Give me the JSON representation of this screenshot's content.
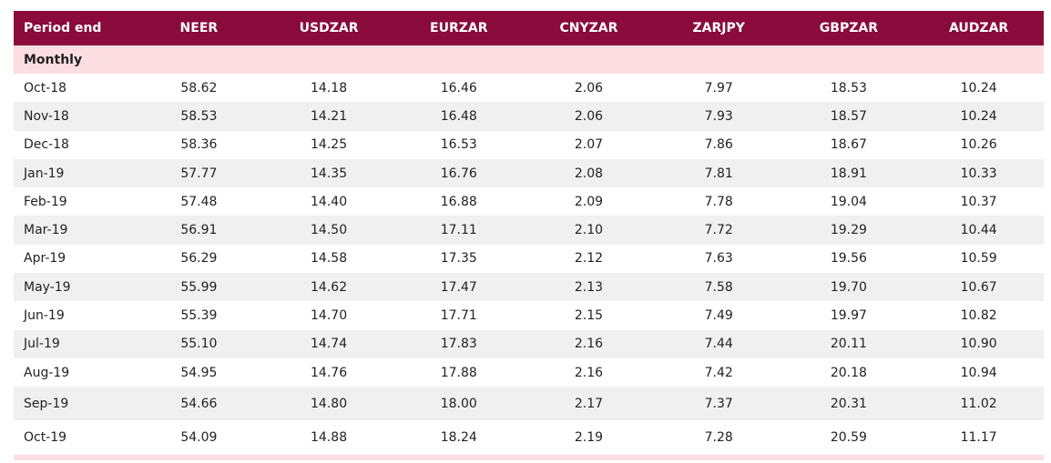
{
  "table": {
    "headers": [
      "Period end",
      "NEER",
      "USDZAR",
      "EURZAR",
      "CNYZAR",
      "ZARJPY",
      "GBPZAR",
      "AUDZAR"
    ],
    "section_label": "Monthly",
    "rows": [
      [
        "Oct-18",
        "58.62",
        "14.18",
        "16.46",
        "2.06",
        "7.97",
        "18.53",
        "10.24"
      ],
      [
        "Nov-18",
        "58.53",
        "14.21",
        "16.48",
        "2.06",
        "7.93",
        "18.57",
        "10.24"
      ],
      [
        "Dec-18",
        "58.36",
        "14.25",
        "16.53",
        "2.07",
        "7.86",
        "18.67",
        "10.26"
      ],
      [
        "Jan-19",
        "57.77",
        "14.35",
        "16.76",
        "2.08",
        "7.81",
        "18.91",
        "10.33"
      ],
      [
        "Feb-19",
        "57.48",
        "14.40",
        "16.88",
        "2.09",
        "7.78",
        "19.04",
        "10.37"
      ],
      [
        "Mar-19",
        "56.91",
        "14.50",
        "17.11",
        "2.10",
        "7.72",
        "19.29",
        "10.44"
      ],
      [
        "Apr-19",
        "56.29",
        "14.58",
        "17.35",
        "2.12",
        "7.63",
        "19.56",
        "10.59"
      ],
      [
        "May-19",
        "55.99",
        "14.62",
        "17.47",
        "2.13",
        "7.58",
        "19.70",
        "10.67"
      ],
      [
        "Jun-19",
        "55.39",
        "14.70",
        "17.71",
        "2.15",
        "7.49",
        "19.97",
        "10.82"
      ],
      [
        "Jul-19",
        "55.10",
        "14.74",
        "17.83",
        "2.16",
        "7.44",
        "20.11",
        "10.90"
      ],
      [
        "Aug-19",
        "54.95",
        "14.76",
        "17.88",
        "2.16",
        "7.42",
        "20.18",
        "10.94"
      ],
      [
        "Sep-19",
        "54.66",
        "14.80",
        "18.00",
        "2.17",
        "7.37",
        "20.31",
        "11.02"
      ],
      [
        "Oct-19",
        "54.09",
        "14.88",
        "18.24",
        "2.19",
        "7.28",
        "20.59",
        "11.17"
      ]
    ]
  },
  "colors": {
    "header_bg": "#8a0a3c",
    "section_bg": "#fbdde2",
    "alt_row_bg": "#f0f0f0"
  }
}
